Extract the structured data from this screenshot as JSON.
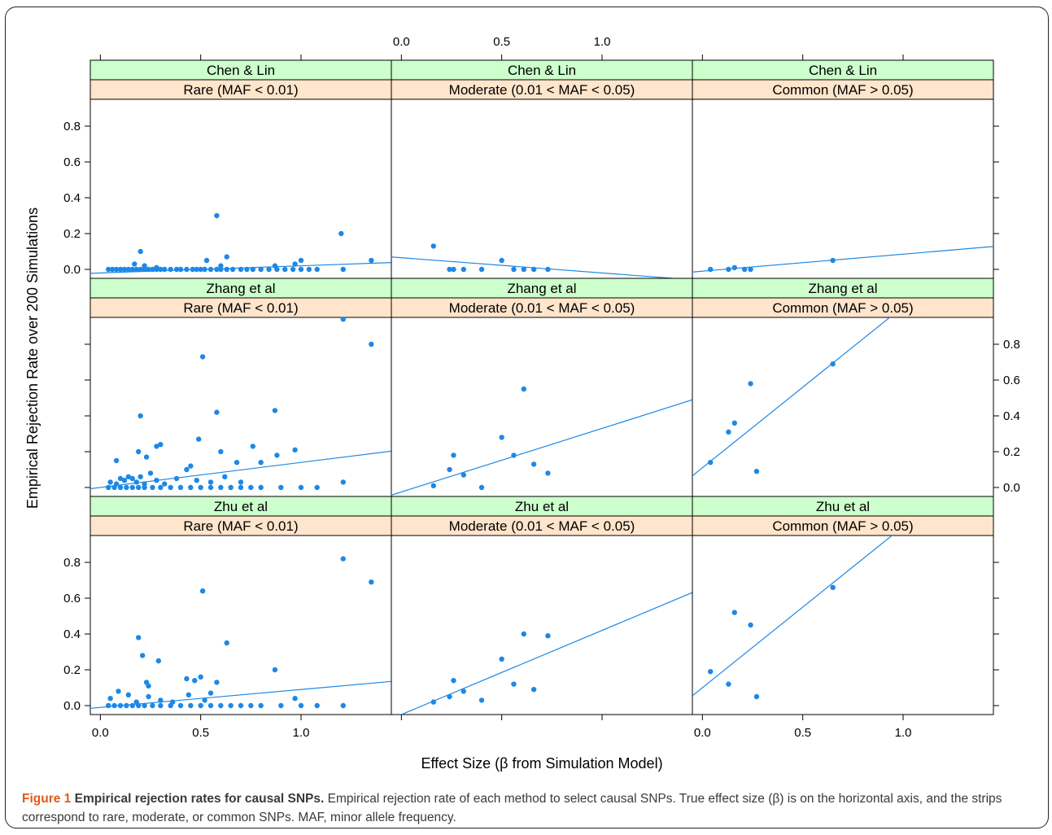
{
  "chart_data": {
    "type": "scatter",
    "layout": "lattice 3x3 with fitted regression lines",
    "xlabel": "Effect Size (β from Simulation Model)",
    "ylabel": "Empirical Rejection Rate over 200 Simulations",
    "xlim": [
      -0.05,
      1.45
    ],
    "ylim": [
      -0.05,
      0.95
    ],
    "x_ticks": [
      0.0,
      0.5,
      1.0
    ],
    "x_tick_labels": [
      "0.0",
      "0.5",
      "1.0"
    ],
    "y_ticks": [
      0.0,
      0.2,
      0.4,
      0.6,
      0.8
    ],
    "y_tick_labels": [
      "0.0",
      "0.2",
      "0.4",
      "0.6",
      "0.8"
    ],
    "grid": false,
    "point_color": "#1e88e5",
    "line_color": "#1e88e5",
    "method_strip_color": "#ccffcc",
    "frequency_strip_color": "#ffe5cc",
    "methods": [
      "Chen & Lin",
      "Zhang et al",
      "Zhu et al"
    ],
    "frequency_classes": [
      "Rare (MAF < 0.01)",
      "Moderate (0.01 < MAF < 0.05)",
      "Common (MAF > 0.05)"
    ],
    "panels": [
      {
        "method": "Chen & Lin",
        "frequency": "Rare (MAF < 0.01)",
        "fit": {
          "intercept": -0.02,
          "slope": 0.04
        },
        "points": [
          [
            0.04,
            0
          ],
          [
            0.06,
            0
          ],
          [
            0.08,
            0
          ],
          [
            0.1,
            0
          ],
          [
            0.12,
            0
          ],
          [
            0.14,
            0
          ],
          [
            0.16,
            0
          ],
          [
            0.18,
            0
          ],
          [
            0.2,
            0
          ],
          [
            0.22,
            0
          ],
          [
            0.24,
            0
          ],
          [
            0.26,
            0
          ],
          [
            0.28,
            0
          ],
          [
            0.3,
            0
          ],
          [
            0.32,
            0
          ],
          [
            0.35,
            0
          ],
          [
            0.38,
            0
          ],
          [
            0.4,
            0
          ],
          [
            0.43,
            0
          ],
          [
            0.46,
            0
          ],
          [
            0.48,
            0
          ],
          [
            0.5,
            0
          ],
          [
            0.52,
            0
          ],
          [
            0.55,
            0
          ],
          [
            0.58,
            0
          ],
          [
            0.6,
            0
          ],
          [
            0.63,
            0
          ],
          [
            0.66,
            0
          ],
          [
            0.7,
            0
          ],
          [
            0.73,
            0
          ],
          [
            0.76,
            0
          ],
          [
            0.8,
            0
          ],
          [
            0.84,
            0
          ],
          [
            0.88,
            0
          ],
          [
            0.92,
            0
          ],
          [
            0.96,
            0
          ],
          [
            1.0,
            0
          ],
          [
            1.04,
            0
          ],
          [
            1.08,
            0
          ],
          [
            1.21,
            0
          ],
          [
            0.17,
            0.03
          ],
          [
            0.2,
            0.1
          ],
          [
            0.22,
            0.02
          ],
          [
            0.28,
            0.01
          ],
          [
            0.53,
            0.05
          ],
          [
            0.58,
            0.3
          ],
          [
            0.6,
            0.02
          ],
          [
            0.63,
            0.07
          ],
          [
            0.87,
            0.02
          ],
          [
            0.97,
            0.03
          ],
          [
            1.0,
            0.05
          ],
          [
            1.2,
            0.2
          ],
          [
            1.35,
            0.05
          ]
        ]
      },
      {
        "method": "Chen & Lin",
        "frequency": "Moderate (0.01 < MAF < 0.05)",
        "fit": {
          "intercept": 0.065,
          "slope": -0.085
        },
        "points": [
          [
            0.16,
            0.13
          ],
          [
            0.24,
            0
          ],
          [
            0.26,
            0
          ],
          [
            0.31,
            0
          ],
          [
            0.4,
            0
          ],
          [
            0.5,
            0.05
          ],
          [
            0.56,
            0
          ],
          [
            0.61,
            0
          ],
          [
            0.66,
            0
          ],
          [
            0.73,
            0
          ]
        ]
      },
      {
        "method": "Chen & Lin",
        "frequency": "Common (MAF > 0.05)",
        "fit": {
          "intercept": -0.01,
          "slope": 0.095
        },
        "points": [
          [
            0.04,
            0
          ],
          [
            0.13,
            0
          ],
          [
            0.16,
            0.01
          ],
          [
            0.21,
            0
          ],
          [
            0.24,
            0
          ],
          [
            0.65,
            0.05
          ]
        ]
      },
      {
        "method": "Zhang et al",
        "frequency": "Rare (MAF < 0.01)",
        "fit": {
          "intercept": 0.0,
          "slope": 0.14
        },
        "points": [
          [
            0.04,
            0
          ],
          [
            0.07,
            0
          ],
          [
            0.1,
            0
          ],
          [
            0.13,
            0
          ],
          [
            0.16,
            0
          ],
          [
            0.19,
            0
          ],
          [
            0.22,
            0
          ],
          [
            0.26,
            0
          ],
          [
            0.3,
            0
          ],
          [
            0.35,
            0
          ],
          [
            0.4,
            0
          ],
          [
            0.45,
            0
          ],
          [
            0.5,
            0
          ],
          [
            0.55,
            0
          ],
          [
            0.6,
            0
          ],
          [
            0.65,
            0
          ],
          [
            0.7,
            0
          ],
          [
            0.75,
            0
          ],
          [
            0.8,
            0
          ],
          [
            0.9,
            0
          ],
          [
            1.0,
            0
          ],
          [
            1.08,
            0
          ],
          [
            0.05,
            0.03
          ],
          [
            0.08,
            0.02
          ],
          [
            0.1,
            0.05
          ],
          [
            0.12,
            0.04
          ],
          [
            0.14,
            0.06
          ],
          [
            0.16,
            0.05
          ],
          [
            0.18,
            0.03
          ],
          [
            0.2,
            0.06
          ],
          [
            0.22,
            0.02
          ],
          [
            0.25,
            0.08
          ],
          [
            0.28,
            0.04
          ],
          [
            0.32,
            0.02
          ],
          [
            0.38,
            0.05
          ],
          [
            0.43,
            0.1
          ],
          [
            0.48,
            0.04
          ],
          [
            0.55,
            0.03
          ],
          [
            0.62,
            0.06
          ],
          [
            0.7,
            0.03
          ],
          [
            0.08,
            0.15
          ],
          [
            0.19,
            0.2
          ],
          [
            0.2,
            0.4
          ],
          [
            0.23,
            0.17
          ],
          [
            0.28,
            0.23
          ],
          [
            0.3,
            0.24
          ],
          [
            0.45,
            0.12
          ],
          [
            0.49,
            0.27
          ],
          [
            0.51,
            0.73
          ],
          [
            0.58,
            0.42
          ],
          [
            0.6,
            0.2
          ],
          [
            0.68,
            0.14
          ],
          [
            0.76,
            0.23
          ],
          [
            0.8,
            0.14
          ],
          [
            0.87,
            0.43
          ],
          [
            0.88,
            0.18
          ],
          [
            0.97,
            0.21
          ],
          [
            1.21,
            0.94
          ],
          [
            1.21,
            0.03
          ],
          [
            1.35,
            0.8
          ]
        ]
      },
      {
        "method": "Zhang et al",
        "frequency": "Moderate (0.01 < MAF < 0.05)",
        "fit": {
          "intercept": -0.025,
          "slope": 0.355
        },
        "points": [
          [
            0.16,
            0.01
          ],
          [
            0.24,
            0.1
          ],
          [
            0.26,
            0.18
          ],
          [
            0.31,
            0.07
          ],
          [
            0.4,
            0
          ],
          [
            0.5,
            0.28
          ],
          [
            0.56,
            0.18
          ],
          [
            0.61,
            0.55
          ],
          [
            0.66,
            0.13
          ],
          [
            0.73,
            0.08
          ]
        ]
      },
      {
        "method": "Zhang et al",
        "frequency": "Common (MAF > 0.05)",
        "fit": {
          "intercept": 0.11,
          "slope": 0.9
        },
        "points": [
          [
            0.04,
            0.14
          ],
          [
            0.13,
            0.31
          ],
          [
            0.16,
            0.36
          ],
          [
            0.24,
            0.58
          ],
          [
            0.27,
            0.09
          ],
          [
            0.65,
            0.69
          ]
        ]
      },
      {
        "method": "Zhu et al",
        "frequency": "Rare (MAF < 0.01)",
        "fit": {
          "intercept": -0.01,
          "slope": 0.1
        },
        "points": [
          [
            0.04,
            0
          ],
          [
            0.07,
            0
          ],
          [
            0.1,
            0
          ],
          [
            0.13,
            0
          ],
          [
            0.16,
            0
          ],
          [
            0.19,
            0
          ],
          [
            0.22,
            0
          ],
          [
            0.26,
            0
          ],
          [
            0.3,
            0
          ],
          [
            0.35,
            0
          ],
          [
            0.4,
            0
          ],
          [
            0.45,
            0
          ],
          [
            0.5,
            0
          ],
          [
            0.55,
            0
          ],
          [
            0.6,
            0
          ],
          [
            0.65,
            0
          ],
          [
            0.7,
            0
          ],
          [
            0.75,
            0
          ],
          [
            0.8,
            0
          ],
          [
            0.9,
            0
          ],
          [
            1.0,
            0
          ],
          [
            1.08,
            0
          ],
          [
            1.21,
            0
          ],
          [
            0.05,
            0.04
          ],
          [
            0.09,
            0.08
          ],
          [
            0.14,
            0.06
          ],
          [
            0.18,
            0.02
          ],
          [
            0.24,
            0.05
          ],
          [
            0.3,
            0.03
          ],
          [
            0.36,
            0.02
          ],
          [
            0.44,
            0.06
          ],
          [
            0.52,
            0.03
          ],
          [
            0.19,
            0.38
          ],
          [
            0.21,
            0.28
          ],
          [
            0.23,
            0.13
          ],
          [
            0.24,
            0.11
          ],
          [
            0.29,
            0.25
          ],
          [
            0.43,
            0.15
          ],
          [
            0.47,
            0.14
          ],
          [
            0.5,
            0.16
          ],
          [
            0.51,
            0.64
          ],
          [
            0.55,
            0.07
          ],
          [
            0.58,
            0.13
          ],
          [
            0.63,
            0.35
          ],
          [
            0.87,
            0.2
          ],
          [
            0.97,
            0.04
          ],
          [
            1.21,
            0.82
          ],
          [
            1.35,
            0.69
          ]
        ]
      },
      {
        "method": "Zhu et al",
        "frequency": "Moderate (0.01 < MAF < 0.05)",
        "fit": {
          "intercept": -0.05,
          "slope": 0.47
        },
        "points": [
          [
            0.16,
            0.02
          ],
          [
            0.24,
            0.05
          ],
          [
            0.26,
            0.14
          ],
          [
            0.31,
            0.08
          ],
          [
            0.4,
            0.03
          ],
          [
            0.5,
            0.26
          ],
          [
            0.56,
            0.12
          ],
          [
            0.61,
            0.4
          ],
          [
            0.66,
            0.09
          ],
          [
            0.73,
            0.39
          ]
        ]
      },
      {
        "method": "Zhu et al",
        "frequency": "Common (MAF > 0.05)",
        "fit": {
          "intercept": 0.1,
          "slope": 0.9
        },
        "points": [
          [
            0.04,
            0.19
          ],
          [
            0.13,
            0.12
          ],
          [
            0.16,
            0.52
          ],
          [
            0.24,
            0.45
          ],
          [
            0.27,
            0.05
          ],
          [
            0.65,
            0.66
          ]
        ]
      }
    ]
  },
  "caption": {
    "label": "Figure 1",
    "title": "Empirical rejection rates for causal SNPs.",
    "text": "Empirical rejection rate of each method to select causal SNPs. True effect size (β) is on the horizontal axis, and the strips correspond to rare, moderate, or common SNPs. MAF, minor allele frequency."
  }
}
